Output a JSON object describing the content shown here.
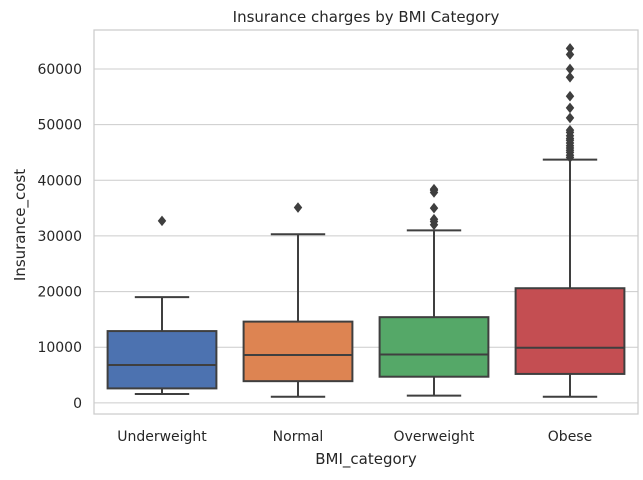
{
  "chart_data": {
    "type": "box",
    "title": "Insurance charges by BMI Category",
    "xlabel": "BMI_category",
    "ylabel": "Insurance_cost",
    "ylim": [
      -2000,
      67000
    ],
    "yticks": [
      0,
      10000,
      20000,
      30000,
      40000,
      50000,
      60000
    ],
    "ytick_labels": [
      "0",
      "10000",
      "20000",
      "30000",
      "40000",
      "50000",
      "60000"
    ],
    "grid": "horizontal",
    "categories": [
      "Underweight",
      "Normal",
      "Overweight",
      "Obese"
    ],
    "colors": [
      "#4c72b0",
      "#dd8452",
      "#55a868",
      "#c44e52"
    ],
    "edge_color": "#3f3f3f",
    "boxes": [
      {
        "category": "Underweight",
        "whisker_low": 1600,
        "q1": 2600,
        "median": 6800,
        "q3": 12900,
        "whisker_high": 19000,
        "outliers": [
          32700
        ]
      },
      {
        "category": "Normal",
        "whisker_low": 1100,
        "q1": 3900,
        "median": 8600,
        "q3": 14600,
        "whisker_high": 30300,
        "outliers": [
          35100
        ]
      },
      {
        "category": "Overweight",
        "whisker_low": 1300,
        "q1": 4700,
        "median": 8700,
        "q3": 15400,
        "whisker_high": 31000,
        "outliers": [
          32000,
          32600,
          33000,
          35000,
          37800,
          38200,
          38400
        ]
      },
      {
        "category": "Obese",
        "whisker_low": 1100,
        "q1": 5200,
        "median": 9900,
        "q3": 20600,
        "whisker_high": 43700,
        "outliers": [
          44100,
          44500,
          45000,
          45400,
          45800,
          46200,
          46700,
          47200,
          47500,
          48000,
          48600,
          49000,
          51200,
          53000,
          55100,
          58500,
          60000,
          62600,
          63700
        ]
      }
    ]
  }
}
